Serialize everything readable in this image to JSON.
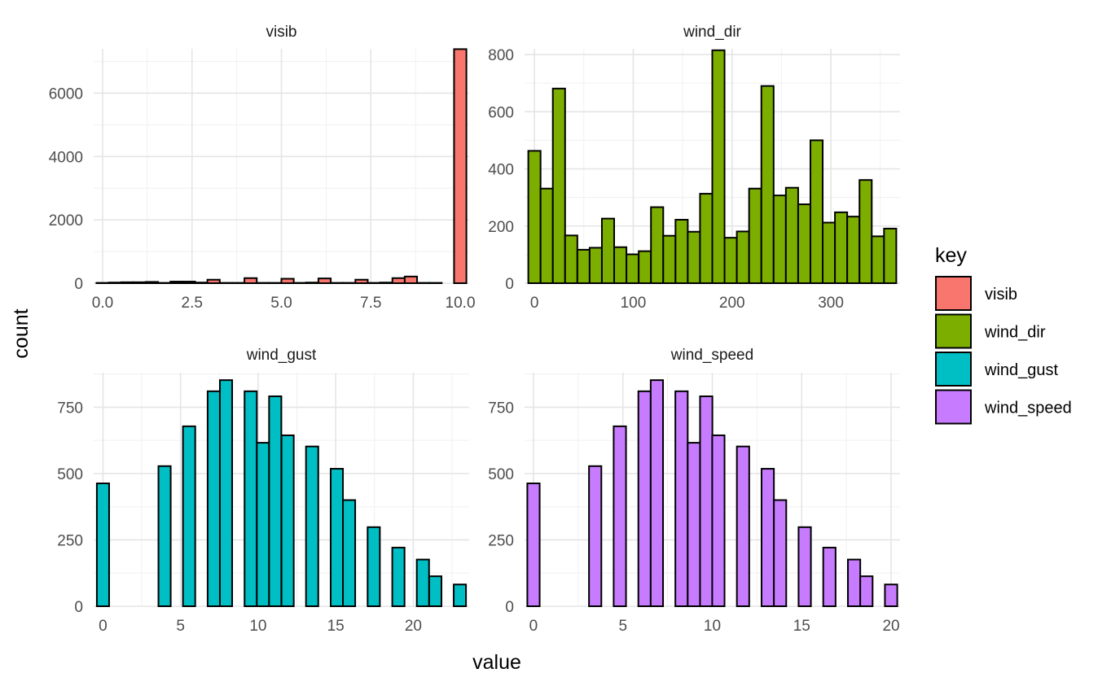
{
  "chart_data": {
    "type": "bar",
    "xlabel": "value",
    "ylabel": "count",
    "legend": {
      "title": "key",
      "placement": "right",
      "entries": [
        {
          "label": "visib",
          "color": "#F8766D"
        },
        {
          "label": "wind_dir",
          "color": "#7CAE00"
        },
        {
          "label": "wind_gust",
          "color": "#00BFC4"
        },
        {
          "label": "wind_speed",
          "color": "#C77CFF"
        }
      ]
    },
    "grid": true,
    "panels": [
      {
        "title": "visib",
        "color": "#F8766D",
        "xlim": [
          -0.25,
          10.25
        ],
        "ylim": [
          0,
          7400
        ],
        "xticks": [
          0,
          2.5,
          5,
          7.5,
          10
        ],
        "xtick_labels": [
          "0.0",
          "2.5",
          "5.0",
          "7.5",
          "10.0"
        ],
        "yticks": [
          0,
          2000,
          4000,
          6000
        ],
        "ytick_labels": [
          "0",
          "2000",
          "4000",
          "6000"
        ],
        "bin_width": 0.345,
        "bin_centers": [
          0,
          0.345,
          0.69,
          1.034,
          1.379,
          1.724,
          2.069,
          2.414,
          2.759,
          3.103,
          3.448,
          3.793,
          4.138,
          4.483,
          4.828,
          5.172,
          5.517,
          5.862,
          6.207,
          6.552,
          6.897,
          7.241,
          7.586,
          7.931,
          8.276,
          8.621,
          8.966,
          9.31,
          9.655,
          10
        ],
        "counts": [
          10,
          20,
          30,
          30,
          40,
          10,
          50,
          50,
          20,
          110,
          10,
          10,
          160,
          10,
          10,
          140,
          10,
          20,
          150,
          10,
          10,
          110,
          10,
          20,
          160,
          210,
          10,
          10,
          0,
          7390
        ]
      },
      {
        "title": "wind_dir",
        "color": "#7CAE00",
        "xlim": [
          -10,
          370
        ],
        "ylim": [
          0,
          820
        ],
        "xticks": [
          0,
          100,
          200,
          300
        ],
        "xtick_labels": [
          "0",
          "100",
          "200",
          "300"
        ],
        "yticks": [
          0,
          200,
          400,
          600,
          800
        ],
        "ytick_labels": [
          "0",
          "200",
          "400",
          "600",
          "800"
        ],
        "bin_width": 12.41,
        "bin_centers": [
          0,
          12.41,
          24.83,
          37.24,
          49.66,
          62.07,
          74.48,
          86.9,
          99.31,
          111.72,
          124.14,
          136.55,
          148.97,
          161.38,
          173.79,
          186.21,
          198.62,
          211.03,
          223.45,
          235.86,
          248.28,
          260.69,
          273.1,
          285.52,
          297.93,
          310.34,
          322.76,
          335.17,
          347.59,
          360
        ],
        "counts": [
          463,
          331,
          681,
          167,
          117,
          124,
          226,
          126,
          101,
          112,
          266,
          166,
          222,
          180,
          313,
          815,
          159,
          181,
          331,
          690,
          307,
          334,
          276,
          500,
          212,
          248,
          233,
          361,
          164,
          191
        ]
      },
      {
        "title": "wind_gust",
        "color": "#00BFC4",
        "xlim": [
          -0.6,
          23.6
        ],
        "ylim": [
          0,
          880
        ],
        "xticks": [
          0,
          5,
          10,
          15,
          20
        ],
        "xtick_labels": [
          "0",
          "5",
          "10",
          "15",
          "20"
        ],
        "yticks": [
          0,
          250,
          500,
          750
        ],
        "ytick_labels": [
          "0",
          "250",
          "500",
          "750"
        ],
        "bin_width": 0.79,
        "bin_centers": [
          0,
          0.79,
          1.59,
          2.38,
          3.17,
          3.97,
          4.76,
          5.55,
          6.35,
          7.14,
          7.93,
          8.73,
          9.52,
          10.31,
          11.1,
          11.9,
          12.69,
          13.48,
          14.28,
          15.07,
          15.86,
          16.66,
          17.45,
          18.24,
          19.04,
          19.83,
          20.62,
          21.42,
          22.21,
          23
        ],
        "counts": [
          463,
          0,
          0,
          0,
          0,
          528,
          0,
          678,
          0,
          810,
          852,
          0,
          810,
          616,
          791,
          644,
          0,
          602,
          0,
          518,
          400,
          0,
          298,
          0,
          221,
          0,
          176,
          113,
          0,
          82
        ]
      },
      {
        "title": "wind_speed",
        "color": "#C77CFF",
        "xlim": [
          -0.5,
          20.5
        ],
        "ylim": [
          0,
          880
        ],
        "xticks": [
          0,
          5,
          10,
          15,
          20
        ],
        "xtick_labels": [
          "0",
          "5",
          "10",
          "15",
          "20"
        ],
        "yticks": [
          0,
          250,
          500,
          750
        ],
        "ytick_labels": [
          "0",
          "250",
          "500",
          "750"
        ],
        "bin_width": 0.69,
        "bin_centers": [
          0,
          0.69,
          1.38,
          2.07,
          2.76,
          3.45,
          4.14,
          4.83,
          5.52,
          6.21,
          6.9,
          7.59,
          8.28,
          8.97,
          9.66,
          10.34,
          11.03,
          11.72,
          12.41,
          13.1,
          13.79,
          14.48,
          15.17,
          15.86,
          16.55,
          17.24,
          17.93,
          18.62,
          19.31,
          20
        ],
        "counts": [
          463,
          0,
          0,
          0,
          0,
          528,
          0,
          678,
          0,
          810,
          852,
          0,
          810,
          616,
          791,
          644,
          0,
          602,
          0,
          518,
          400,
          0,
          298,
          0,
          221,
          0,
          176,
          113,
          0,
          82
        ]
      }
    ]
  }
}
